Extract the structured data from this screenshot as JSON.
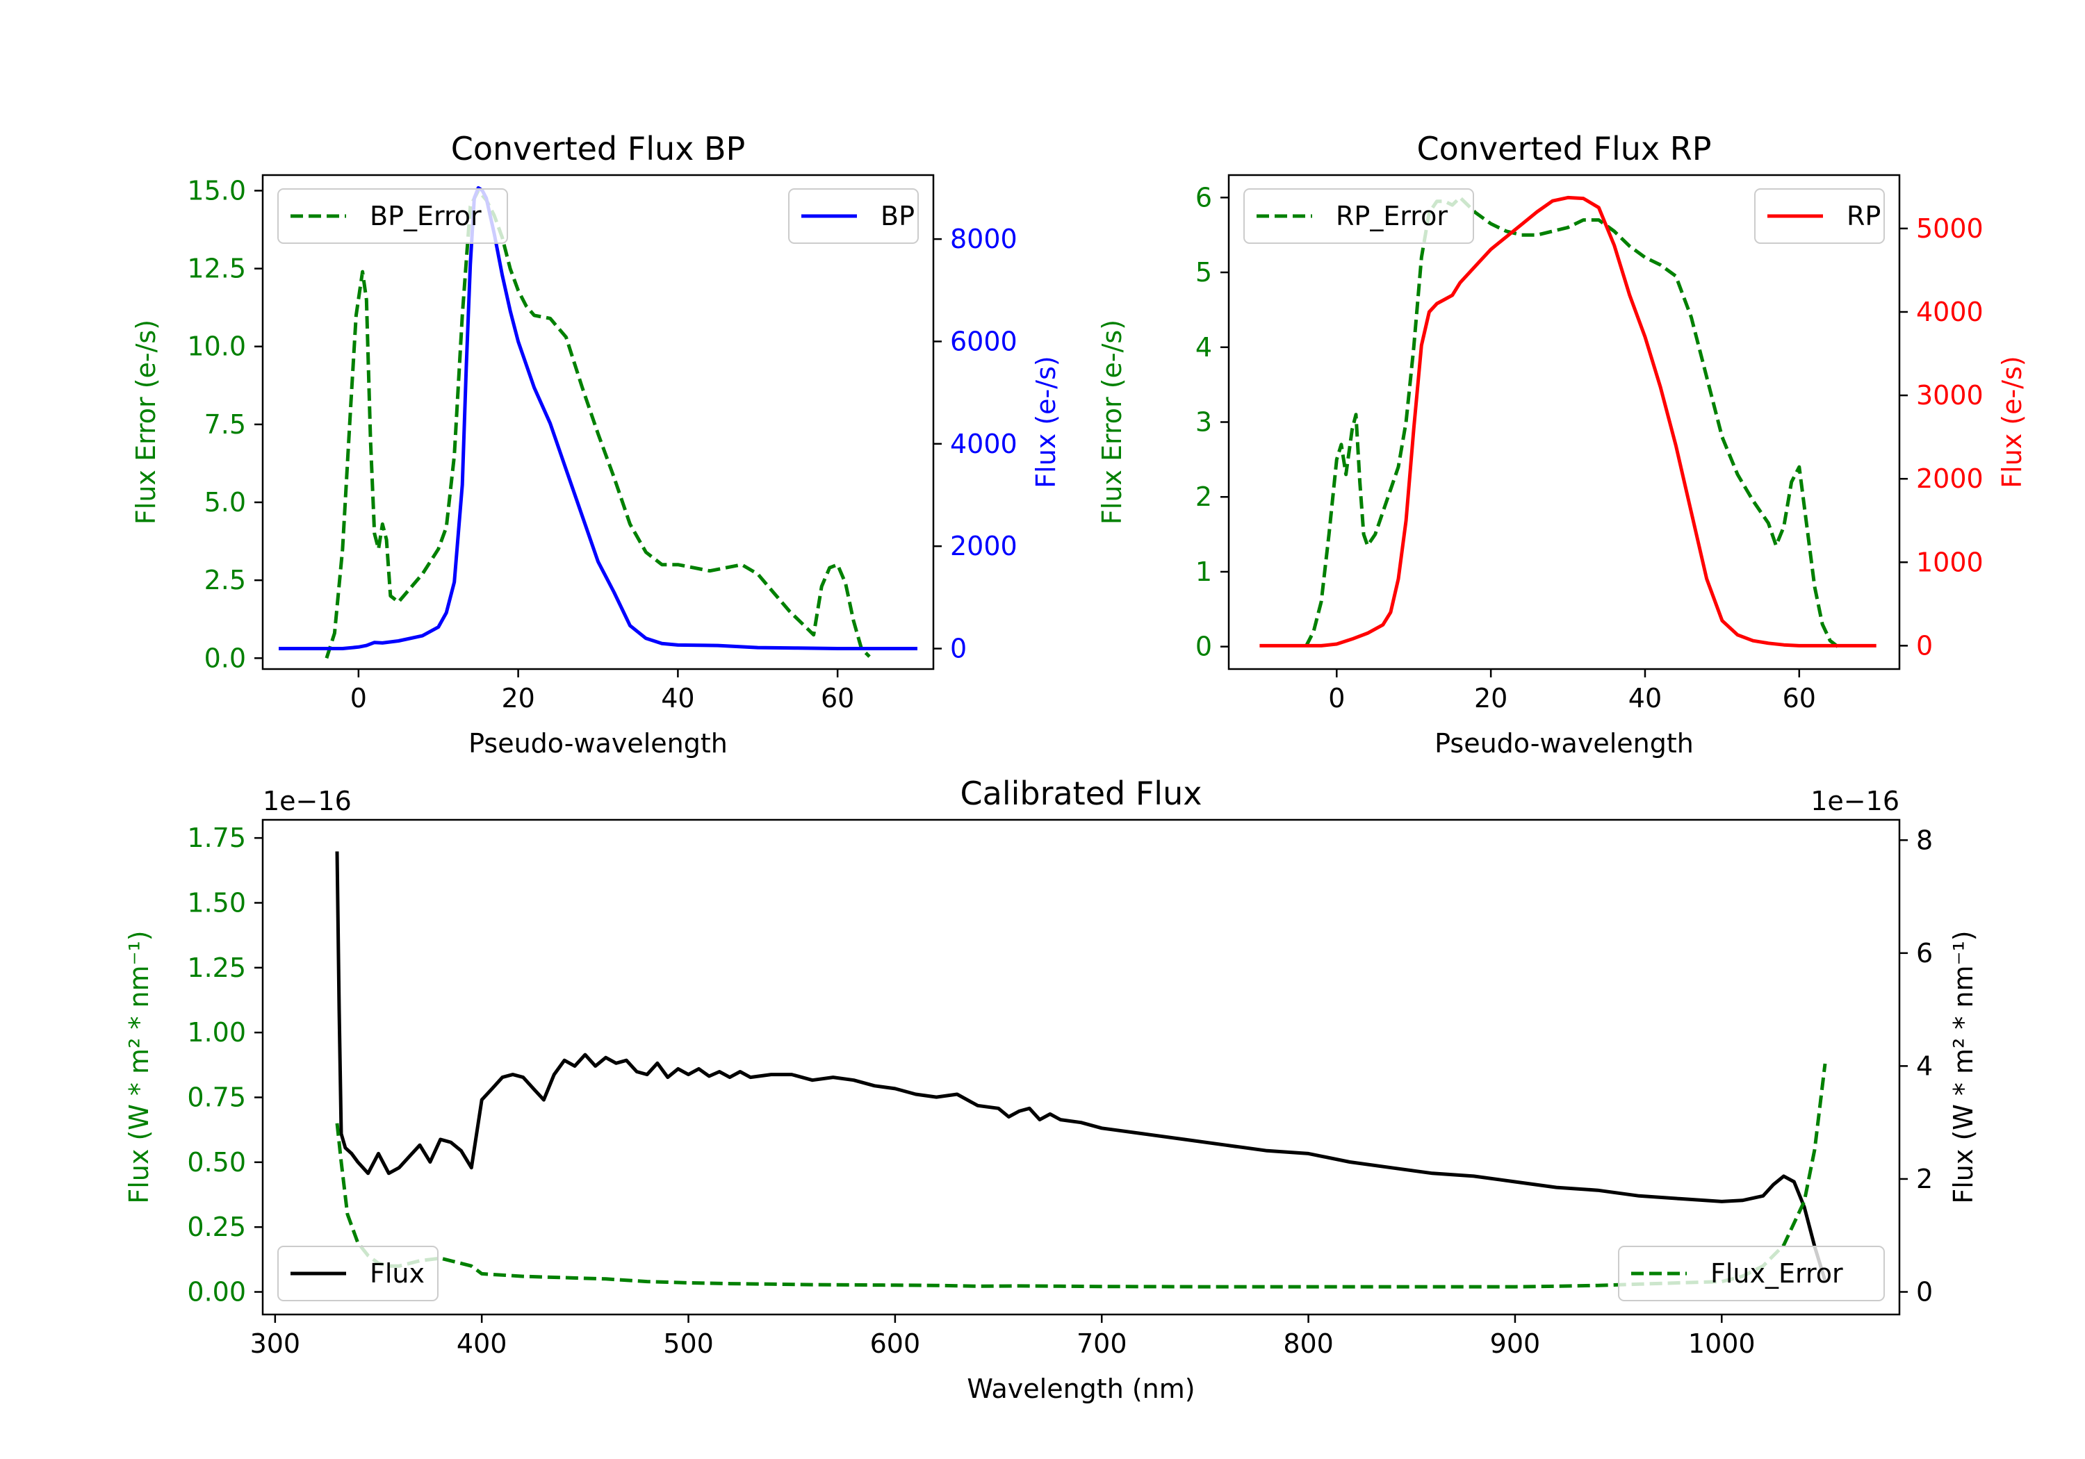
{
  "colors": {
    "bp": "#0000ff",
    "rp": "#ff0000",
    "error": "#008000",
    "flux": "#000000",
    "axis": "#000000",
    "legend_border": "#cccccc"
  },
  "chart_data": [
    {
      "id": "bp",
      "type": "line",
      "title": "Converted Flux BP",
      "xlabel": "Pseudo-wavelength",
      "ylabel_left": "Flux Error (e-/s)",
      "ylabel_right": "Flux (e-/s)",
      "xlim": [
        -12,
        72
      ],
      "ylim_left": [
        -0.35,
        15.5
      ],
      "ylim_right": [
        -400,
        9250
      ],
      "xticks": [
        0,
        20,
        40,
        60
      ],
      "xtick_labels": [
        "0",
        "20",
        "40",
        "60"
      ],
      "yticks_left": [
        0,
        2.5,
        5,
        7.5,
        10,
        12.5,
        15
      ],
      "ytick_labels_left": [
        "0.0",
        "2.5",
        "5.0",
        "7.5",
        "10.0",
        "12.5",
        "15.0"
      ],
      "yticks_right": [
        0,
        2000,
        4000,
        6000,
        8000
      ],
      "ytick_labels_right": [
        "0",
        "2000",
        "4000",
        "6000",
        "8000"
      ],
      "legend_left": {
        "label": "BP_Error",
        "position": "upper left"
      },
      "legend_right": {
        "label": "BP",
        "position": "upper right"
      },
      "series": [
        {
          "name": "BP_Error",
          "axis": "left",
          "style": "dashed",
          "color": "#008000",
          "x": [
            -4,
            -3,
            -2,
            -1,
            -0.3,
            0.5,
            1,
            1.5,
            2,
            2.5,
            3,
            3.5,
            4,
            5,
            6,
            7,
            8,
            9,
            10,
            11,
            12,
            13,
            14,
            15,
            16,
            17,
            18,
            19,
            20,
            21,
            22,
            24,
            26,
            28,
            30,
            32,
            34,
            36,
            38,
            40,
            42,
            44,
            46,
            48,
            50,
            52,
            54,
            56,
            57,
            58,
            59,
            60,
            61,
            62,
            63,
            64
          ],
          "y": [
            0,
            0.8,
            3.5,
            8,
            11,
            12.4,
            11.5,
            7,
            4,
            3.5,
            4.3,
            3.8,
            2,
            1.8,
            2.1,
            2.4,
            2.7,
            3.1,
            3.5,
            4.2,
            6.5,
            11,
            14.5,
            15,
            14.7,
            14.2,
            13.5,
            12.5,
            11.8,
            11.3,
            11,
            10.9,
            10.3,
            8.7,
            7.2,
            5.8,
            4.3,
            3.4,
            3.0,
            3.0,
            2.9,
            2.8,
            2.9,
            3.0,
            2.7,
            2.1,
            1.5,
            1.0,
            0.75,
            2.3,
            2.9,
            3.0,
            2.4,
            1.2,
            0.3,
            0.05
          ]
        },
        {
          "name": "BP",
          "axis": "right",
          "style": "solid",
          "color": "#0000ff",
          "x": [
            -10,
            -5,
            -2,
            0,
            1,
            2,
            3,
            5,
            8,
            10,
            11,
            12,
            13,
            13.5,
            14,
            14.5,
            15,
            15.5,
            16,
            17,
            18,
            19,
            20,
            22,
            24,
            26,
            28,
            30,
            32,
            34,
            36,
            38,
            40,
            45,
            50,
            55,
            60,
            65,
            70
          ],
          "y": [
            0,
            0,
            0,
            30,
            60,
            120,
            110,
            150,
            250,
            420,
            700,
            1300,
            3200,
            5500,
            7500,
            8800,
            9000,
            8950,
            8800,
            8100,
            7300,
            6600,
            6000,
            5100,
            4400,
            3500,
            2600,
            1700,
            1100,
            450,
            200,
            100,
            70,
            60,
            20,
            10,
            0,
            0,
            0
          ]
        }
      ]
    },
    {
      "id": "rp",
      "type": "line",
      "title": "Converted Flux RP",
      "xlabel": "Pseudo-wavelength",
      "ylabel_left": "Flux Error (e-/s)",
      "ylabel_right": "Flux (e-/s)",
      "xlim": [
        -14,
        73
      ],
      "ylim_left": [
        -0.3,
        6.3
      ],
      "ylim_right": [
        -280,
        5640
      ],
      "xticks": [
        0,
        20,
        40,
        60
      ],
      "xtick_labels": [
        "0",
        "20",
        "40",
        "60"
      ],
      "yticks_left": [
        0,
        1,
        2,
        3,
        4,
        5,
        6
      ],
      "ytick_labels_left": [
        "0",
        "1",
        "2",
        "3",
        "4",
        "5",
        "6"
      ],
      "yticks_right": [
        0,
        1000,
        2000,
        3000,
        4000,
        5000
      ],
      "ytick_labels_right": [
        "0",
        "1000",
        "2000",
        "3000",
        "4000",
        "5000"
      ],
      "legend_left": {
        "label": "RP_Error",
        "position": "upper left"
      },
      "legend_right": {
        "label": "RP",
        "position": "upper right"
      },
      "series": [
        {
          "name": "RP_Error",
          "axis": "left",
          "style": "dashed",
          "color": "#008000",
          "x": [
            -4,
            -3,
            -2,
            -1,
            0,
            0.6,
            1.2,
            2,
            2.5,
            3,
            3.5,
            4,
            5,
            6,
            7,
            8,
            9,
            10,
            11,
            12,
            13,
            14,
            15,
            16,
            18,
            20,
            22,
            24,
            26,
            28,
            30,
            32,
            34,
            36,
            38,
            40,
            42,
            44,
            46,
            48,
            50,
            52,
            54,
            56,
            57,
            58,
            59,
            60,
            61,
            62,
            63,
            64,
            65
          ],
          "y": [
            0,
            0.2,
            0.6,
            1.5,
            2.5,
            2.7,
            2.3,
            2.9,
            3.1,
            2.2,
            1.5,
            1.35,
            1.5,
            1.8,
            2.1,
            2.4,
            3.0,
            4.0,
            5.2,
            5.8,
            5.95,
            5.95,
            5.9,
            6.0,
            5.8,
            5.65,
            5.55,
            5.5,
            5.5,
            5.55,
            5.6,
            5.7,
            5.7,
            5.55,
            5.35,
            5.2,
            5.1,
            4.95,
            4.4,
            3.6,
            2.8,
            2.3,
            1.95,
            1.65,
            1.35,
            1.6,
            2.2,
            2.4,
            1.6,
            0.8,
            0.3,
            0.08,
            0
          ]
        },
        {
          "name": "RP",
          "axis": "right",
          "style": "solid",
          "color": "#ff0000",
          "x": [
            -10,
            -5,
            -2,
            0,
            2,
            4,
            6,
            7,
            8,
            9,
            10,
            11,
            12,
            13,
            14,
            15,
            16,
            18,
            20,
            22,
            24,
            26,
            28,
            30,
            32,
            34,
            36,
            38,
            40,
            42,
            44,
            46,
            48,
            50,
            52,
            54,
            56,
            58,
            60,
            65,
            70
          ],
          "y": [
            0,
            0,
            0,
            20,
            80,
            150,
            250,
            400,
            800,
            1500,
            2600,
            3600,
            4000,
            4100,
            4150,
            4200,
            4350,
            4550,
            4750,
            4900,
            5050,
            5200,
            5330,
            5370,
            5360,
            5250,
            4800,
            4200,
            3700,
            3100,
            2400,
            1600,
            800,
            300,
            130,
            60,
            30,
            10,
            0,
            0,
            0
          ]
        }
      ]
    },
    {
      "id": "cal",
      "type": "line",
      "title": "Calibrated Flux",
      "xlabel": "Wavelength (nm)",
      "ylabel_left": "Flux (W * m² * nm⁻¹)",
      "ylabel_right": "Flux (W * m² * nm⁻¹)",
      "offset_left": "1e−16",
      "offset_right": "1e−16",
      "xlim": [
        294,
        1086
      ],
      "ylim_left": [
        -0.087,
        1.82
      ],
      "ylim_right": [
        -0.4,
        8.36
      ],
      "xticks": [
        300,
        400,
        500,
        600,
        700,
        800,
        900,
        1000
      ],
      "xtick_labels": [
        "300",
        "400",
        "500",
        "600",
        "700",
        "800",
        "900",
        "1000"
      ],
      "yticks_left": [
        0,
        0.25,
        0.5,
        0.75,
        1.0,
        1.25,
        1.5,
        1.75
      ],
      "ytick_labels_left": [
        "0.00",
        "0.25",
        "0.50",
        "0.75",
        "1.00",
        "1.25",
        "1.50",
        "1.75"
      ],
      "yticks_right": [
        0,
        2,
        4,
        6,
        8
      ],
      "ytick_labels_right": [
        "0",
        "2",
        "4",
        "6",
        "8"
      ],
      "legend_right_axis": {
        "label": "Flux",
        "position": "lower left"
      },
      "legend_left_axis": {
        "label": "Flux_Error",
        "position": "lower right"
      },
      "series": [
        {
          "name": "Flux",
          "axis": "right",
          "style": "solid",
          "color": "#000000",
          "x": [
            330,
            331,
            332,
            334,
            337,
            340,
            345,
            350,
            355,
            360,
            365,
            370,
            375,
            380,
            385,
            390,
            395,
            400,
            405,
            410,
            415,
            420,
            425,
            430,
            435,
            440,
            445,
            450,
            455,
            460,
            465,
            470,
            475,
            480,
            485,
            490,
            495,
            500,
            505,
            510,
            515,
            520,
            525,
            530,
            540,
            550,
            560,
            570,
            580,
            590,
            600,
            610,
            620,
            630,
            640,
            650,
            655,
            660,
            665,
            670,
            675,
            680,
            690,
            700,
            720,
            740,
            760,
            780,
            800,
            820,
            840,
            860,
            880,
            900,
            920,
            940,
            960,
            980,
            1000,
            1010,
            1020,
            1025,
            1030,
            1035,
            1040,
            1045,
            1050
          ],
          "y": [
            7.8,
            5.0,
            2.8,
            2.55,
            2.45,
            2.3,
            2.1,
            2.45,
            2.1,
            2.2,
            2.4,
            2.6,
            2.3,
            2.7,
            2.65,
            2.5,
            2.2,
            3.4,
            3.6,
            3.8,
            3.85,
            3.8,
            3.6,
            3.4,
            3.85,
            4.1,
            4.0,
            4.2,
            4.0,
            4.15,
            4.05,
            4.1,
            3.9,
            3.85,
            4.05,
            3.8,
            3.95,
            3.85,
            3.95,
            3.82,
            3.9,
            3.8,
            3.9,
            3.8,
            3.85,
            3.85,
            3.75,
            3.8,
            3.75,
            3.65,
            3.6,
            3.5,
            3.45,
            3.5,
            3.3,
            3.25,
            3.1,
            3.2,
            3.25,
            3.05,
            3.15,
            3.05,
            3.0,
            2.9,
            2.8,
            2.7,
            2.6,
            2.5,
            2.45,
            2.3,
            2.2,
            2.1,
            2.05,
            1.95,
            1.85,
            1.8,
            1.7,
            1.65,
            1.6,
            1.62,
            1.7,
            1.9,
            2.05,
            1.95,
            1.5,
            0.8,
            0.2
          ]
        },
        {
          "name": "Flux_Error",
          "axis": "left",
          "style": "dashed",
          "color": "#008000",
          "x": [
            330,
            332,
            335,
            340,
            345,
            350,
            355,
            360,
            365,
            370,
            380,
            390,
            395,
            400,
            420,
            440,
            460,
            480,
            500,
            520,
            540,
            560,
            580,
            600,
            620,
            640,
            660,
            680,
            700,
            750,
            800,
            850,
            900,
            920,
            940,
            960,
            980,
            1000,
            1010,
            1020,
            1030,
            1040,
            1045,
            1050
          ],
          "y": [
            0.65,
            0.5,
            0.3,
            0.19,
            0.14,
            0.11,
            0.1,
            0.1,
            0.11,
            0.12,
            0.13,
            0.11,
            0.1,
            0.07,
            0.06,
            0.055,
            0.05,
            0.04,
            0.035,
            0.032,
            0.03,
            0.028,
            0.027,
            0.026,
            0.025,
            0.022,
            0.023,
            0.022,
            0.021,
            0.02,
            0.02,
            0.02,
            0.02,
            0.022,
            0.025,
            0.03,
            0.035,
            0.04,
            0.06,
            0.1,
            0.18,
            0.35,
            0.55,
            0.88
          ]
        }
      ]
    }
  ]
}
